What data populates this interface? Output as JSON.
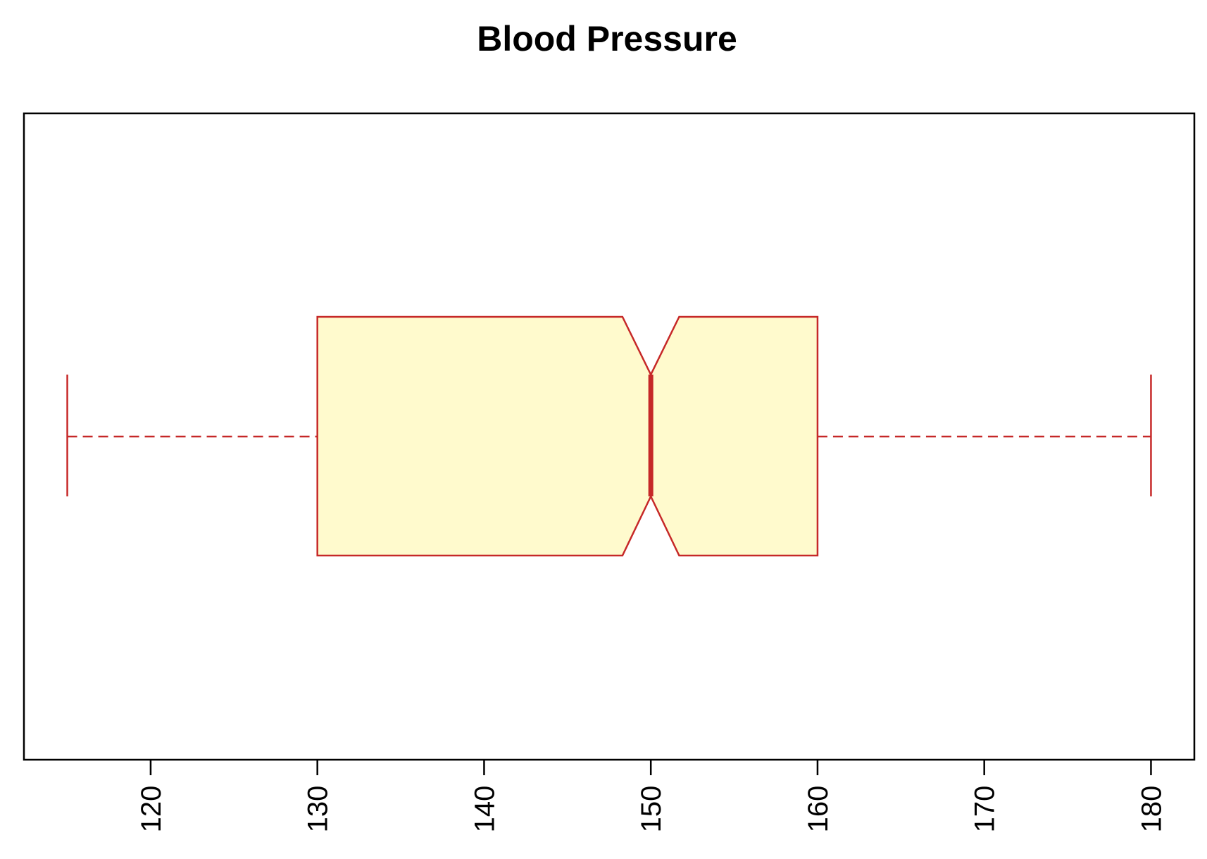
{
  "chart_data": {
    "type": "boxplot",
    "orientation": "horizontal",
    "title": "Blood Pressure",
    "xlabel": "",
    "ylabel": "",
    "xlim": [
      112.4,
      182.6
    ],
    "ticks": [
      120,
      130,
      140,
      150,
      160,
      170,
      180
    ],
    "tick_labels": [
      "120",
      "130",
      "140",
      "150",
      "160",
      "170",
      "180"
    ],
    "tick_label_orientation": "vertical",
    "notched": true,
    "grid": false,
    "legend": "none",
    "box": {
      "whisker_low": 115,
      "q1": 130,
      "median": 150,
      "q3": 160,
      "whisker_high": 180,
      "notch_low": 148.3,
      "notch_high": 151.7
    },
    "colors": {
      "box_fill": "#FFFACD",
      "box_border": "#C62828",
      "median": "#C62828",
      "whisker": "#C62828",
      "frame": "#000000"
    }
  }
}
